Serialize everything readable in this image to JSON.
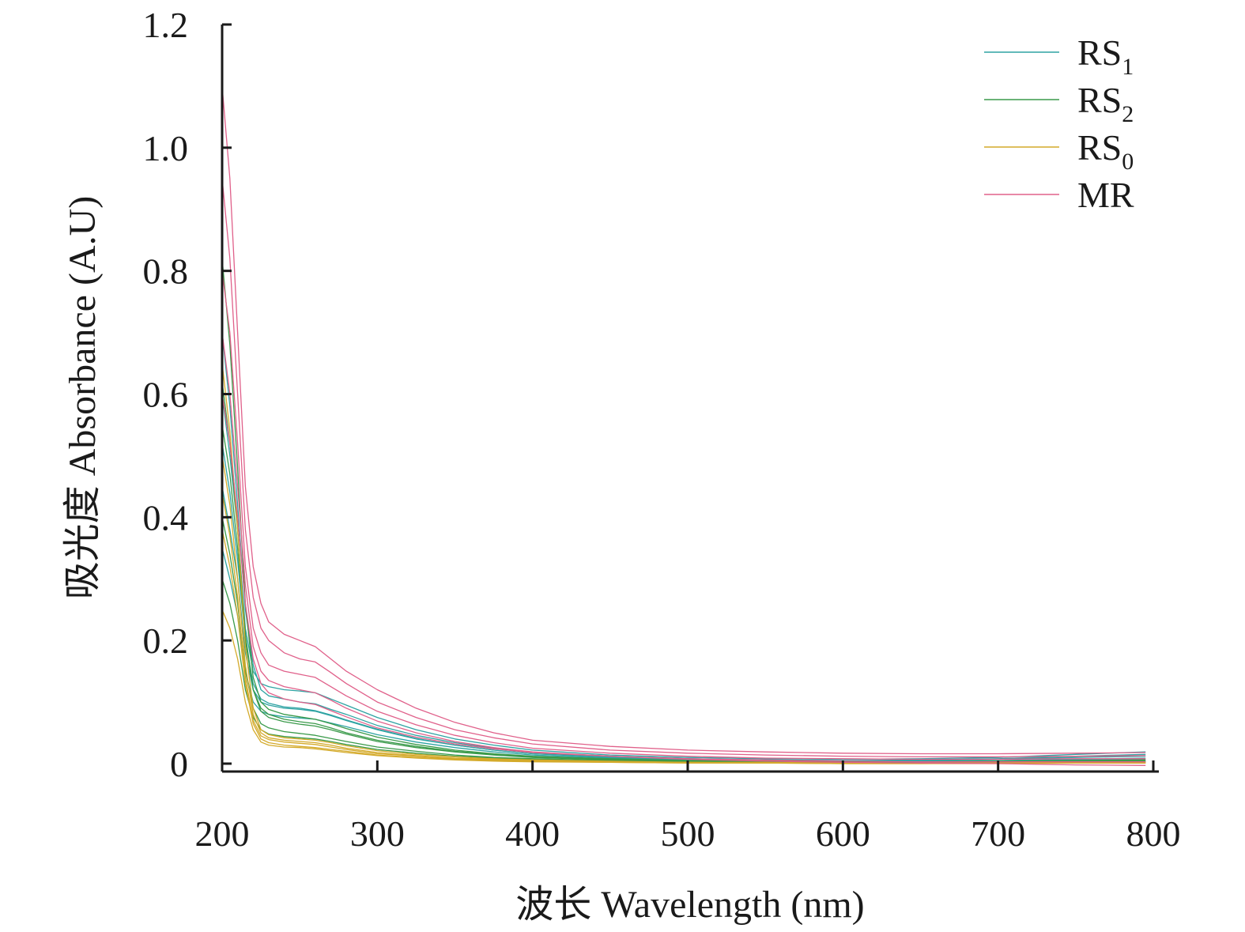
{
  "chart_data": {
    "type": "line",
    "xlabel": "波长 Wavelength (nm)",
    "ylabel": "吸光度 Absorbance (A.U)",
    "xlim": [
      200,
      800
    ],
    "ylim": [
      0,
      1.2
    ],
    "x_ticks": [
      200,
      300,
      400,
      500,
      600,
      700,
      800
    ],
    "x_tick_labels": [
      "200",
      "300",
      "400",
      "500",
      "600",
      "700",
      "800"
    ],
    "y_ticks": [
      0,
      0.2,
      0.4,
      0.6,
      0.8,
      1.0,
      1.2
    ],
    "y_tick_labels": [
      "0",
      "0.2",
      "0.4",
      "0.6",
      "0.8",
      "1.0",
      "1.2"
    ],
    "grid": false,
    "legend_position": "top-right",
    "legend": [
      {
        "base": "RS",
        "sub": "1",
        "color": "#2ea3a3"
      },
      {
        "base": "RS",
        "sub": "2",
        "color": "#3a9a4a"
      },
      {
        "base": "RS",
        "sub": "0",
        "color": "#d4aa2a"
      },
      {
        "base": "MR",
        "sub": "",
        "color": "#e0608a"
      }
    ],
    "x": [
      200,
      205,
      210,
      215,
      220,
      225,
      230,
      240,
      250,
      260,
      270,
      280,
      300,
      325,
      350,
      375,
      400,
      450,
      500,
      550,
      600,
      650,
      700,
      750,
      795
    ],
    "series": [
      {
        "name": "RS1",
        "color": "#2ea3a3",
        "values": [
          0.6,
          0.5,
          0.38,
          0.22,
          0.15,
          0.13,
          0.125,
          0.12,
          0.118,
          0.115,
          0.105,
          0.095,
          0.075,
          0.055,
          0.04,
          0.03,
          0.022,
          0.014,
          0.01,
          0.008,
          0.007,
          0.008,
          0.01,
          0.015,
          0.019
        ]
      },
      {
        "name": "RS1",
        "color": "#2ea3a3",
        "values": [
          0.45,
          0.38,
          0.3,
          0.18,
          0.12,
          0.1,
          0.095,
          0.09,
          0.088,
          0.085,
          0.078,
          0.07,
          0.055,
          0.04,
          0.03,
          0.022,
          0.016,
          0.011,
          0.008,
          0.006,
          0.005,
          0.006,
          0.008,
          0.012,
          0.015
        ]
      },
      {
        "name": "RS1",
        "color": "#2ea3a3",
        "values": [
          0.7,
          0.58,
          0.42,
          0.25,
          0.16,
          0.12,
          0.11,
          0.105,
          0.1,
          0.097,
          0.088,
          0.08,
          0.062,
          0.046,
          0.034,
          0.025,
          0.018,
          0.012,
          0.008,
          0.006,
          0.005,
          0.005,
          0.007,
          0.01,
          0.012
        ]
      },
      {
        "name": "RS1",
        "color": "#2ea3a3",
        "values": [
          0.35,
          0.3,
          0.24,
          0.15,
          0.1,
          0.085,
          0.08,
          0.076,
          0.074,
          0.072,
          0.066,
          0.06,
          0.047,
          0.035,
          0.026,
          0.019,
          0.014,
          0.009,
          0.006,
          0.005,
          0.004,
          0.004,
          0.005,
          0.007,
          0.009
        ]
      },
      {
        "name": "RS1",
        "color": "#2ea3a3",
        "values": [
          0.52,
          0.44,
          0.33,
          0.2,
          0.13,
          0.105,
          0.098,
          0.092,
          0.09,
          0.086,
          0.079,
          0.071,
          0.056,
          0.041,
          0.03,
          0.022,
          0.016,
          0.01,
          0.007,
          0.005,
          0.004,
          0.004,
          0.005,
          0.006,
          0.007
        ]
      },
      {
        "name": "RS2",
        "color": "#3a9a4a",
        "values": [
          0.55,
          0.47,
          0.35,
          0.2,
          0.12,
          0.09,
          0.08,
          0.072,
          0.068,
          0.065,
          0.058,
          0.05,
          0.038,
          0.028,
          0.02,
          0.015,
          0.011,
          0.007,
          0.005,
          0.004,
          0.003,
          0.003,
          0.004,
          0.005,
          0.006
        ]
      },
      {
        "name": "RS2",
        "color": "#3a9a4a",
        "values": [
          0.4,
          0.34,
          0.26,
          0.15,
          0.09,
          0.065,
          0.058,
          0.052,
          0.049,
          0.046,
          0.041,
          0.036,
          0.027,
          0.02,
          0.014,
          0.01,
          0.008,
          0.005,
          0.003,
          0.002,
          0.002,
          0.002,
          0.003,
          0.004,
          0.005
        ]
      },
      {
        "name": "RS2",
        "color": "#3a9a4a",
        "values": [
          0.82,
          0.68,
          0.48,
          0.26,
          0.14,
          0.1,
          0.088,
          0.08,
          0.076,
          0.072,
          0.065,
          0.057,
          0.043,
          0.031,
          0.022,
          0.016,
          0.012,
          0.008,
          0.005,
          0.004,
          0.003,
          0.003,
          0.003,
          0.004,
          0.004
        ]
      },
      {
        "name": "RS2",
        "color": "#3a9a4a",
        "values": [
          0.3,
          0.26,
          0.2,
          0.12,
          0.075,
          0.055,
          0.048,
          0.044,
          0.042,
          0.04,
          0.036,
          0.031,
          0.023,
          0.017,
          0.012,
          0.009,
          0.007,
          0.004,
          0.003,
          0.002,
          0.001,
          0.001,
          0.002,
          0.002,
          0.003
        ]
      },
      {
        "name": "RS2",
        "color": "#3a9a4a",
        "values": [
          0.62,
          0.52,
          0.38,
          0.21,
          0.12,
          0.085,
          0.075,
          0.068,
          0.064,
          0.061,
          0.055,
          0.048,
          0.036,
          0.026,
          0.019,
          0.014,
          0.01,
          0.006,
          0.004,
          0.003,
          0.002,
          0.002,
          0.003,
          0.003,
          0.004
        ]
      },
      {
        "name": "RS0",
        "color": "#d4aa2a",
        "values": [
          0.5,
          0.42,
          0.3,
          0.16,
          0.08,
          0.05,
          0.042,
          0.038,
          0.036,
          0.034,
          0.03,
          0.025,
          0.018,
          0.013,
          0.009,
          0.007,
          0.005,
          0.003,
          0.002,
          0.001,
          0.001,
          0.001,
          0.001,
          0.002,
          0.002
        ]
      },
      {
        "name": "RS0",
        "color": "#d4aa2a",
        "values": [
          0.38,
          0.32,
          0.24,
          0.13,
          0.065,
          0.04,
          0.034,
          0.03,
          0.028,
          0.026,
          0.023,
          0.02,
          0.014,
          0.01,
          0.007,
          0.005,
          0.004,
          0.002,
          0.001,
          0.001,
          0.0,
          0.0,
          0.001,
          0.001,
          0.001
        ]
      },
      {
        "name": "RS0",
        "color": "#d4aa2a",
        "values": [
          0.25,
          0.22,
          0.17,
          0.1,
          0.055,
          0.035,
          0.03,
          0.027,
          0.026,
          0.024,
          0.021,
          0.018,
          0.013,
          0.009,
          0.006,
          0.004,
          0.003,
          0.002,
          0.001,
          0.001,
          0.0,
          0.0,
          0.0,
          0.001,
          0.001
        ]
      },
      {
        "name": "RS0",
        "color": "#d4aa2a",
        "values": [
          0.65,
          0.54,
          0.38,
          0.19,
          0.09,
          0.055,
          0.047,
          0.042,
          0.04,
          0.038,
          0.034,
          0.029,
          0.021,
          0.015,
          0.011,
          0.008,
          0.006,
          0.004,
          0.002,
          0.002,
          0.001,
          0.001,
          0.001,
          0.002,
          0.002
        ]
      },
      {
        "name": "RS0",
        "color": "#d4aa2a",
        "values": [
          0.44,
          0.37,
          0.27,
          0.14,
          0.07,
          0.045,
          0.039,
          0.035,
          0.033,
          0.031,
          0.027,
          0.023,
          0.016,
          0.012,
          0.008,
          0.006,
          0.004,
          0.003,
          0.002,
          0.001,
          0.001,
          0.001,
          0.001,
          0.001,
          0.001
        ]
      },
      {
        "name": "MR",
        "color": "#e0608a",
        "values": [
          1.1,
          0.95,
          0.7,
          0.45,
          0.32,
          0.26,
          0.23,
          0.21,
          0.2,
          0.19,
          0.17,
          0.15,
          0.12,
          0.09,
          0.067,
          0.05,
          0.038,
          0.028,
          0.022,
          0.019,
          0.017,
          0.016,
          0.016,
          0.017,
          0.018
        ]
      },
      {
        "name": "MR",
        "color": "#e0608a",
        "values": [
          0.95,
          0.82,
          0.6,
          0.38,
          0.27,
          0.22,
          0.2,
          0.18,
          0.17,
          0.165,
          0.148,
          0.13,
          0.1,
          0.075,
          0.055,
          0.042,
          0.032,
          0.022,
          0.017,
          0.014,
          0.012,
          0.011,
          0.011,
          0.012,
          0.013
        ]
      },
      {
        "name": "MR",
        "color": "#e0608a",
        "values": [
          0.8,
          0.7,
          0.52,
          0.32,
          0.22,
          0.18,
          0.16,
          0.15,
          0.145,
          0.14,
          0.125,
          0.11,
          0.085,
          0.063,
          0.046,
          0.034,
          0.025,
          0.017,
          0.012,
          0.009,
          0.008,
          0.007,
          0.007,
          0.008,
          0.008
        ]
      },
      {
        "name": "MR",
        "color": "#e0608a",
        "values": [
          0.6,
          0.52,
          0.4,
          0.26,
          0.17,
          0.13,
          0.115,
          0.105,
          0.1,
          0.096,
          0.086,
          0.076,
          0.058,
          0.043,
          0.032,
          0.024,
          0.018,
          0.012,
          0.008,
          0.006,
          0.004,
          0.003,
          0.003,
          0.003,
          0.003
        ]
      },
      {
        "name": "MR",
        "color": "#e0608a",
        "values": [
          0.7,
          0.6,
          0.45,
          0.29,
          0.19,
          0.15,
          0.135,
          0.125,
          0.12,
          0.115,
          0.103,
          0.09,
          0.069,
          0.05,
          0.036,
          0.026,
          0.019,
          0.012,
          0.007,
          0.004,
          0.002,
          0.001,
          0.0,
          -0.002,
          -0.003
        ]
      }
    ]
  }
}
